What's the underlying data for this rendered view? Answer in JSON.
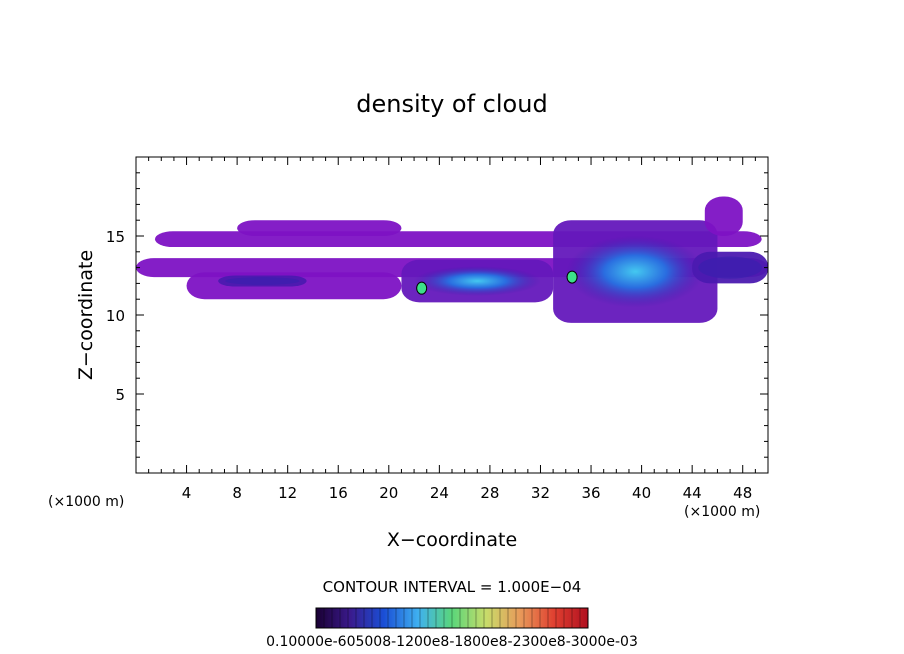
{
  "chart_data": {
    "type": "heatmap",
    "title": "density of cloud",
    "xlabel": "X−coordinate",
    "ylabel": "Z−coordinate",
    "x_unit": "(×1000 m)",
    "x_unit_right": "(×1000 m)",
    "xlim": [
      0,
      50
    ],
    "ylim": [
      0,
      20
    ],
    "x_ticks": [
      4,
      8,
      12,
      16,
      20,
      24,
      28,
      32,
      36,
      40,
      44,
      48
    ],
    "y_ticks": [
      5,
      10,
      15
    ],
    "x_tick_labels": [
      "4",
      "8",
      "12",
      "16",
      "20",
      "24",
      "28",
      "32",
      "36",
      "40",
      "44",
      "48"
    ],
    "y_tick_labels": [
      "5",
      "10",
      "15"
    ],
    "contour_interval_text": "CONTOUR INTERVAL = 1.000E−04",
    "colorbar_labels_text": "0.10000e-605008-1200e8-1800e8-2300e8-3000e-03",
    "colorbar_stops": [
      "#1a0033",
      "#3a1a8c",
      "#1a4fd6",
      "#3fb0f0",
      "#5ad67a",
      "#c8dc6a",
      "#e89a5a",
      "#e04030",
      "#b01020"
    ],
    "regions": [
      {
        "name": "upper-layer",
        "x": [
          1.5,
          49.5
        ],
        "z": [
          14.3,
          15.3
        ],
        "level": 1
      },
      {
        "name": "middle-layer",
        "x": [
          0,
          50
        ],
        "z": [
          12.4,
          13.6
        ],
        "level": 1
      },
      {
        "name": "left-cloud-body",
        "x": [
          4,
          21
        ],
        "z": [
          11.0,
          12.7
        ],
        "level": 1
      },
      {
        "name": "left-cloud-core",
        "x": [
          6.5,
          13.5
        ],
        "z": [
          11.8,
          12.5
        ],
        "level": 2
      },
      {
        "name": "left-top-bump",
        "x": [
          8,
          21
        ],
        "z": [
          15.0,
          16.0
        ],
        "level": 1
      },
      {
        "name": "mid-active-cloud",
        "x": [
          21,
          33
        ],
        "z": [
          10.8,
          13.5
        ],
        "level": 3
      },
      {
        "name": "right-active-cloud",
        "x": [
          33,
          46
        ],
        "z": [
          9.5,
          16.0
        ],
        "level": 3
      },
      {
        "name": "right-turret",
        "x": [
          45,
          48
        ],
        "z": [
          15.0,
          17.5
        ],
        "level": 1
      },
      {
        "name": "right-lower-cloud",
        "x": [
          44,
          50
        ],
        "z": [
          12.0,
          14.0
        ],
        "level": 2
      }
    ],
    "contour_marks": [
      {
        "x": 34.5,
        "z": 12.4
      },
      {
        "x": 22.6,
        "z": 11.7
      }
    ]
  }
}
